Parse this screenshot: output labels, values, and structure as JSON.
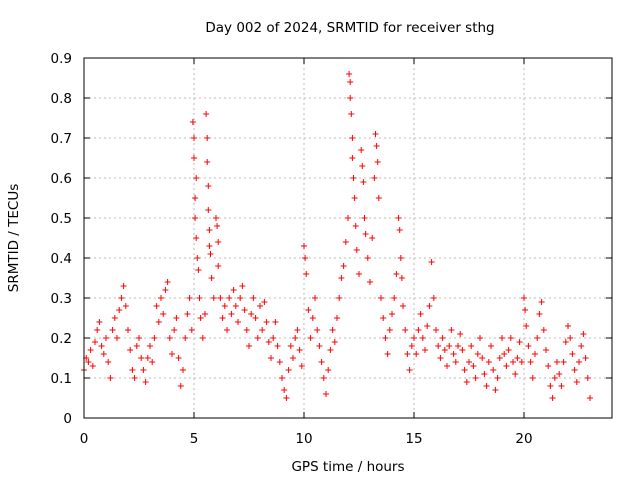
{
  "chart_data": {
    "type": "scatter",
    "title": "Day 002 of 2024, SRMTID for receiver sthg",
    "xlabel": "GPS time / hours",
    "ylabel": "SRMTID / TECUs",
    "xlim": [
      0,
      24
    ],
    "ylim": [
      0,
      0.9
    ],
    "xticks": [
      0,
      5,
      10,
      15,
      20
    ],
    "yticks": [
      0,
      0.1,
      0.2,
      0.3,
      0.4,
      0.5,
      0.6,
      0.7,
      0.8,
      0.9
    ],
    "xtick_labels": [
      "0",
      "5",
      "10",
      "15",
      "20"
    ],
    "ytick_labels": [
      "0",
      "0.1",
      "0.2",
      "0.3",
      "0.4",
      "0.5",
      "0.6",
      "0.7",
      "0.8",
      "0.9"
    ],
    "grid": true,
    "marker": "+",
    "color": "#ff0000",
    "data_extent_hours": [
      0,
      23
    ],
    "series": [
      {
        "name": "SRMTID",
        "points": [
          [
            0.0,
            0.12
          ],
          [
            0.1,
            0.15
          ],
          [
            0.2,
            0.14
          ],
          [
            0.3,
            0.17
          ],
          [
            0.4,
            0.13
          ],
          [
            0.5,
            0.19
          ],
          [
            0.6,
            0.22
          ],
          [
            0.7,
            0.24
          ],
          [
            0.8,
            0.18
          ],
          [
            0.9,
            0.16
          ],
          [
            1.0,
            0.2
          ],
          [
            1.1,
            0.14
          ],
          [
            1.2,
            0.1
          ],
          [
            1.3,
            0.22
          ],
          [
            1.4,
            0.25
          ],
          [
            1.5,
            0.2
          ],
          [
            1.6,
            0.27
          ],
          [
            1.7,
            0.3
          ],
          [
            1.8,
            0.33
          ],
          [
            1.9,
            0.28
          ],
          [
            2.0,
            0.22
          ],
          [
            2.1,
            0.17
          ],
          [
            2.2,
            0.12
          ],
          [
            2.3,
            0.1
          ],
          [
            2.4,
            0.18
          ],
          [
            2.5,
            0.2
          ],
          [
            2.6,
            0.15
          ],
          [
            2.7,
            0.12
          ],
          [
            2.8,
            0.09
          ],
          [
            2.9,
            0.15
          ],
          [
            3.0,
            0.18
          ],
          [
            3.1,
            0.14
          ],
          [
            3.2,
            0.2
          ],
          [
            3.3,
            0.28
          ],
          [
            3.4,
            0.24
          ],
          [
            3.5,
            0.3
          ],
          [
            3.6,
            0.26
          ],
          [
            3.7,
            0.32
          ],
          [
            3.8,
            0.34
          ],
          [
            3.9,
            0.2
          ],
          [
            4.0,
            0.16
          ],
          [
            4.1,
            0.22
          ],
          [
            4.2,
            0.25
          ],
          [
            4.3,
            0.15
          ],
          [
            4.4,
            0.08
          ],
          [
            4.5,
            0.12
          ],
          [
            4.6,
            0.2
          ],
          [
            4.7,
            0.26
          ],
          [
            4.8,
            0.3
          ],
          [
            4.9,
            0.22
          ],
          [
            4.95,
            0.74
          ],
          [
            5.0,
            0.7
          ],
          [
            5.0,
            0.65
          ],
          [
            5.05,
            0.55
          ],
          [
            5.05,
            0.5
          ],
          [
            5.1,
            0.6
          ],
          [
            5.1,
            0.45
          ],
          [
            5.15,
            0.4
          ],
          [
            5.2,
            0.37
          ],
          [
            5.25,
            0.3
          ],
          [
            5.3,
            0.25
          ],
          [
            5.4,
            0.2
          ],
          [
            5.5,
            0.26
          ],
          [
            5.55,
            0.76
          ],
          [
            5.6,
            0.7
          ],
          [
            5.6,
            0.64
          ],
          [
            5.65,
            0.58
          ],
          [
            5.65,
            0.52
          ],
          [
            5.7,
            0.47
          ],
          [
            5.7,
            0.43
          ],
          [
            5.75,
            0.41
          ],
          [
            5.8,
            0.35
          ],
          [
            5.9,
            0.3
          ],
          [
            6.0,
            0.5
          ],
          [
            6.05,
            0.48
          ],
          [
            6.1,
            0.44
          ],
          [
            6.1,
            0.38
          ],
          [
            6.2,
            0.3
          ],
          [
            6.3,
            0.25
          ],
          [
            6.4,
            0.28
          ],
          [
            6.5,
            0.22
          ],
          [
            6.6,
            0.3
          ],
          [
            6.7,
            0.26
          ],
          [
            6.8,
            0.32
          ],
          [
            6.9,
            0.28
          ],
          [
            7.0,
            0.24
          ],
          [
            7.1,
            0.3
          ],
          [
            7.2,
            0.33
          ],
          [
            7.3,
            0.27
          ],
          [
            7.4,
            0.22
          ],
          [
            7.5,
            0.18
          ],
          [
            7.6,
            0.26
          ],
          [
            7.7,
            0.3
          ],
          [
            7.8,
            0.25
          ],
          [
            7.9,
            0.2
          ],
          [
            8.0,
            0.28
          ],
          [
            8.1,
            0.22
          ],
          [
            8.2,
            0.29
          ],
          [
            8.3,
            0.24
          ],
          [
            8.4,
            0.19
          ],
          [
            8.5,
            0.15
          ],
          [
            8.6,
            0.2
          ],
          [
            8.7,
            0.24
          ],
          [
            8.8,
            0.18
          ],
          [
            8.9,
            0.14
          ],
          [
            9.0,
            0.1
          ],
          [
            9.1,
            0.07
          ],
          [
            9.2,
            0.05
          ],
          [
            9.3,
            0.12
          ],
          [
            9.4,
            0.18
          ],
          [
            9.5,
            0.15
          ],
          [
            9.6,
            0.2
          ],
          [
            9.7,
            0.22
          ],
          [
            9.8,
            0.17
          ],
          [
            9.9,
            0.13
          ],
          [
            10.0,
            0.43
          ],
          [
            10.05,
            0.4
          ],
          [
            10.1,
            0.36
          ],
          [
            10.2,
            0.27
          ],
          [
            10.3,
            0.2
          ],
          [
            10.4,
            0.25
          ],
          [
            10.5,
            0.3
          ],
          [
            10.6,
            0.22
          ],
          [
            10.7,
            0.18
          ],
          [
            10.8,
            0.14
          ],
          [
            10.9,
            0.1
          ],
          [
            11.0,
            0.06
          ],
          [
            11.1,
            0.12
          ],
          [
            11.2,
            0.17
          ],
          [
            11.3,
            0.22
          ],
          [
            11.4,
            0.19
          ],
          [
            11.5,
            0.25
          ],
          [
            11.6,
            0.3
          ],
          [
            11.7,
            0.35
          ],
          [
            11.8,
            0.38
          ],
          [
            11.9,
            0.44
          ],
          [
            12.0,
            0.5
          ],
          [
            12.05,
            0.86
          ],
          [
            12.1,
            0.84
          ],
          [
            12.1,
            0.8
          ],
          [
            12.15,
            0.76
          ],
          [
            12.2,
            0.7
          ],
          [
            12.2,
            0.65
          ],
          [
            12.25,
            0.6
          ],
          [
            12.3,
            0.55
          ],
          [
            12.35,
            0.48
          ],
          [
            12.4,
            0.42
          ],
          [
            12.5,
            0.36
          ],
          [
            12.6,
            0.67
          ],
          [
            12.65,
            0.63
          ],
          [
            12.7,
            0.59
          ],
          [
            12.75,
            0.5
          ],
          [
            12.8,
            0.46
          ],
          [
            12.9,
            0.4
          ],
          [
            13.0,
            0.34
          ],
          [
            13.1,
            0.45
          ],
          [
            13.2,
            0.6
          ],
          [
            13.25,
            0.71
          ],
          [
            13.3,
            0.68
          ],
          [
            13.35,
            0.64
          ],
          [
            13.4,
            0.55
          ],
          [
            13.5,
            0.3
          ],
          [
            13.6,
            0.25
          ],
          [
            13.7,
            0.2
          ],
          [
            13.8,
            0.16
          ],
          [
            13.9,
            0.22
          ],
          [
            14.0,
            0.26
          ],
          [
            14.1,
            0.3
          ],
          [
            14.2,
            0.36
          ],
          [
            14.3,
            0.5
          ],
          [
            14.35,
            0.47
          ],
          [
            14.4,
            0.4
          ],
          [
            14.45,
            0.35
          ],
          [
            14.5,
            0.28
          ],
          [
            14.6,
            0.22
          ],
          [
            14.7,
            0.16
          ],
          [
            14.8,
            0.12
          ],
          [
            14.9,
            0.18
          ],
          [
            15.0,
            0.2
          ],
          [
            15.1,
            0.16
          ],
          [
            15.2,
            0.22
          ],
          [
            15.3,
            0.26
          ],
          [
            15.4,
            0.2
          ],
          [
            15.5,
            0.17
          ],
          [
            15.6,
            0.23
          ],
          [
            15.7,
            0.28
          ],
          [
            15.8,
            0.39
          ],
          [
            15.9,
            0.3
          ],
          [
            16.0,
            0.22
          ],
          [
            16.1,
            0.18
          ],
          [
            16.2,
            0.15
          ],
          [
            16.3,
            0.2
          ],
          [
            16.4,
            0.17
          ],
          [
            16.5,
            0.13
          ],
          [
            16.6,
            0.18
          ],
          [
            16.7,
            0.22
          ],
          [
            16.8,
            0.16
          ],
          [
            16.9,
            0.14
          ],
          [
            17.0,
            0.18
          ],
          [
            17.1,
            0.21
          ],
          [
            17.2,
            0.17
          ],
          [
            17.3,
            0.12
          ],
          [
            17.4,
            0.09
          ],
          [
            17.5,
            0.14
          ],
          [
            17.6,
            0.18
          ],
          [
            17.7,
            0.13
          ],
          [
            17.8,
            0.1
          ],
          [
            17.9,
            0.16
          ],
          [
            18.0,
            0.2
          ],
          [
            18.1,
            0.15
          ],
          [
            18.2,
            0.11
          ],
          [
            18.3,
            0.08
          ],
          [
            18.4,
            0.14
          ],
          [
            18.5,
            0.18
          ],
          [
            18.6,
            0.12
          ],
          [
            18.7,
            0.07
          ],
          [
            18.8,
            0.1
          ],
          [
            18.9,
            0.15
          ],
          [
            19.0,
            0.2
          ],
          [
            19.1,
            0.16
          ],
          [
            19.2,
            0.13
          ],
          [
            19.3,
            0.17
          ],
          [
            19.4,
            0.2
          ],
          [
            19.5,
            0.14
          ],
          [
            19.6,
            0.11
          ],
          [
            19.7,
            0.15
          ],
          [
            19.8,
            0.19
          ],
          [
            19.9,
            0.14
          ],
          [
            20.0,
            0.3
          ],
          [
            20.05,
            0.27
          ],
          [
            20.1,
            0.23
          ],
          [
            20.2,
            0.18
          ],
          [
            20.3,
            0.14
          ],
          [
            20.4,
            0.1
          ],
          [
            20.5,
            0.16
          ],
          [
            20.6,
            0.2
          ],
          [
            20.7,
            0.26
          ],
          [
            20.8,
            0.29
          ],
          [
            20.9,
            0.22
          ],
          [
            21.0,
            0.17
          ],
          [
            21.1,
            0.13
          ],
          [
            21.2,
            0.08
          ],
          [
            21.3,
            0.05
          ],
          [
            21.4,
            0.1
          ],
          [
            21.5,
            0.14
          ],
          [
            21.6,
            0.11
          ],
          [
            21.7,
            0.08
          ],
          [
            21.8,
            0.14
          ],
          [
            21.9,
            0.19
          ],
          [
            22.0,
            0.23
          ],
          [
            22.1,
            0.2
          ],
          [
            22.2,
            0.16
          ],
          [
            22.3,
            0.12
          ],
          [
            22.4,
            0.09
          ],
          [
            22.5,
            0.14
          ],
          [
            22.6,
            0.18
          ],
          [
            22.7,
            0.21
          ],
          [
            22.8,
            0.15
          ],
          [
            22.9,
            0.1
          ],
          [
            23.0,
            0.05
          ]
        ]
      }
    ]
  }
}
